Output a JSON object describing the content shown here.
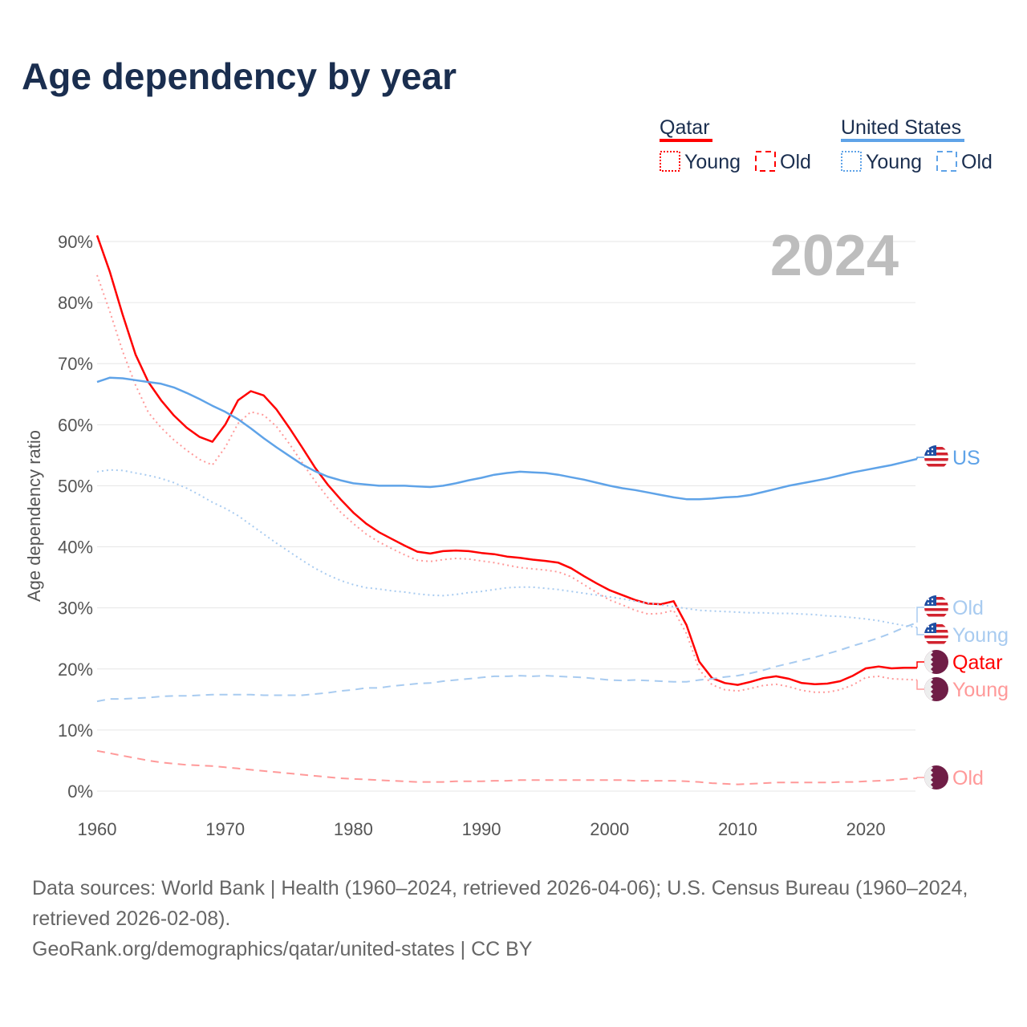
{
  "title": "Age dependency by year",
  "legend": {
    "groups": [
      {
        "name": "Qatar",
        "color": "#ff0000",
        "items": [
          "Young",
          "Old"
        ]
      },
      {
        "name": "United States",
        "color": "#5fa3e8",
        "items": [
          "Young",
          "Old"
        ]
      }
    ]
  },
  "year_watermark": "2024",
  "end_labels": {
    "us_total": "US",
    "us_old": "Old",
    "us_young": "Young",
    "qa_total": "Qatar",
    "qa_young": "Young",
    "qa_old": "Old"
  },
  "source": {
    "line1": "Data sources: World Bank | Health (1960–2024, retrieved 2026-04-06); U.S. Census Bureau (1960–2024, retrieved 2026-02-08).",
    "line2": "GeoRank.org/demographics/qatar/united-states | CC BY"
  },
  "chart_data": {
    "type": "line",
    "title": "Age dependency by year",
    "xlabel": "",
    "ylabel": "Age dependency ratio",
    "xlim": [
      1960,
      2024
    ],
    "ylim": [
      0,
      90
    ],
    "x_ticks": [
      "1960",
      "1970",
      "1980",
      "1990",
      "2000",
      "2010",
      "2020"
    ],
    "y_ticks": [
      "0%",
      "10%",
      "20%",
      "30%",
      "40%",
      "50%",
      "60%",
      "70%",
      "80%",
      "90%"
    ],
    "grid": true,
    "legend_position": "top-right",
    "x_start": 1960,
    "series": [
      {
        "name": "Qatar",
        "style": "solid",
        "color": "#ff0000",
        "values": [
          91,
          85,
          78,
          71.5,
          67,
          64,
          61.5,
          59.5,
          58,
          57.2,
          60,
          64,
          65.5,
          64.8,
          62.5,
          59.5,
          56.3,
          53,
          50.2,
          47.8,
          45.6,
          43.8,
          42.4,
          41.3,
          40.2,
          39.2,
          38.9,
          39.3,
          39.4,
          39.3,
          39,
          38.8,
          38.4,
          38.2,
          37.9,
          37.7,
          37.4,
          36.5,
          35.2,
          34,
          32.9,
          32.1,
          31.3,
          30.7,
          30.6,
          31.1,
          27.2,
          21.2,
          18.5,
          17.7,
          17.4,
          17.9,
          18.5,
          18.8,
          18.4,
          17.7,
          17.5,
          17.6,
          18,
          18.9,
          20.1,
          20.4,
          20.1,
          20.2,
          20.2
        ]
      },
      {
        "name": "Qatar Young",
        "style": "dotted",
        "color": "#ff9999",
        "values": [
          84.5,
          78.5,
          72,
          66.5,
          62,
          59.5,
          57.5,
          55.8,
          54.3,
          53.4,
          56.3,
          60.2,
          62.1,
          61.6,
          59.7,
          56.9,
          53.8,
          50.8,
          48.1,
          45.7,
          43.8,
          42.1,
          40.8,
          39.7,
          38.7,
          37.8,
          37.6,
          37.9,
          38.1,
          38,
          37.7,
          37.4,
          37,
          36.6,
          36.4,
          36.2,
          35.9,
          35.1,
          33.8,
          32.5,
          31.3,
          30.5,
          29.6,
          29,
          29.1,
          29.6,
          25.8,
          19.9,
          17.4,
          16.6,
          16.4,
          16.8,
          17.3,
          17.5,
          17.1,
          16.5,
          16.2,
          16.2,
          16.6,
          17.4,
          18.6,
          18.8,
          18.4,
          18.3,
          18.2
        ]
      },
      {
        "name": "Qatar Old",
        "style": "dashed",
        "color": "#ff9999",
        "values": [
          6.6,
          6.2,
          5.8,
          5.4,
          5,
          4.7,
          4.5,
          4.3,
          4.2,
          4.1,
          3.9,
          3.7,
          3.5,
          3.3,
          3.1,
          2.9,
          2.7,
          2.5,
          2.3,
          2.1,
          2,
          1.9,
          1.8,
          1.7,
          1.6,
          1.5,
          1.5,
          1.5,
          1.6,
          1.6,
          1.6,
          1.7,
          1.7,
          1.8,
          1.8,
          1.8,
          1.8,
          1.8,
          1.8,
          1.8,
          1.8,
          1.8,
          1.7,
          1.7,
          1.7,
          1.7,
          1.6,
          1.5,
          1.3,
          1.2,
          1.1,
          1.2,
          1.3,
          1.4,
          1.4,
          1.4,
          1.4,
          1.4,
          1.5,
          1.5,
          1.6,
          1.7,
          1.8,
          2,
          2.1
        ]
      },
      {
        "name": "United States",
        "style": "solid",
        "color": "#5fa3e8",
        "values": [
          67,
          67.7,
          67.6,
          67.3,
          67,
          66.7,
          66.1,
          65.2,
          64.2,
          63.1,
          62.1,
          60.9,
          59.4,
          57.8,
          56.3,
          54.9,
          53.5,
          52.4,
          51.5,
          50.9,
          50.4,
          50.2,
          50,
          50,
          50,
          49.9,
          49.8,
          50,
          50.4,
          50.9,
          51.3,
          51.8,
          52.1,
          52.3,
          52.2,
          52.1,
          51.8,
          51.4,
          51,
          50.5,
          50,
          49.6,
          49.3,
          48.9,
          48.5,
          48.1,
          47.8,
          47.8,
          47.9,
          48.1,
          48.2,
          48.5,
          49,
          49.5,
          50,
          50.4,
          50.8,
          51.2,
          51.7,
          52.2,
          52.6,
          53,
          53.4,
          53.9,
          54.4
        ]
      },
      {
        "name": "United States Young",
        "style": "dotted",
        "color": "#a8cbf0",
        "values": [
          52.3,
          52.6,
          52.5,
          52.1,
          51.7,
          51.2,
          50.5,
          49.6,
          48.5,
          47.3,
          46.3,
          45.1,
          43.6,
          42.1,
          40.6,
          39.2,
          37.8,
          36.5,
          35.4,
          34.5,
          33.8,
          33.3,
          33.1,
          32.8,
          32.6,
          32.3,
          32.1,
          32,
          32.2,
          32.5,
          32.7,
          33,
          33.3,
          33.4,
          33.4,
          33.2,
          33,
          32.7,
          32.4,
          32.1,
          31.8,
          31.5,
          31.1,
          30.8,
          30.5,
          30.2,
          29.9,
          29.6,
          29.5,
          29.4,
          29.3,
          29.2,
          29.2,
          29.1,
          29.1,
          29,
          28.9,
          28.7,
          28.6,
          28.4,
          28.2,
          27.9,
          27.5,
          27.1,
          26.8
        ]
      },
      {
        "name": "United States Old",
        "style": "dashed",
        "color": "#a8cbf0",
        "values": [
          14.7,
          15.1,
          15.1,
          15.2,
          15.3,
          15.5,
          15.6,
          15.6,
          15.7,
          15.8,
          15.8,
          15.8,
          15.8,
          15.7,
          15.7,
          15.7,
          15.7,
          15.9,
          16.1,
          16.4,
          16.6,
          16.9,
          16.9,
          17.2,
          17.4,
          17.6,
          17.7,
          18,
          18.2,
          18.4,
          18.6,
          18.8,
          18.8,
          18.9,
          18.8,
          18.9,
          18.8,
          18.7,
          18.6,
          18.4,
          18.2,
          18.1,
          18.2,
          18.1,
          18,
          17.9,
          17.9,
          18.2,
          18.4,
          18.7,
          18.9,
          19.3,
          19.8,
          20.4,
          20.9,
          21.4,
          21.9,
          22.5,
          23.1,
          23.8,
          24.4,
          25.1,
          25.9,
          26.8,
          27.6
        ]
      }
    ]
  }
}
